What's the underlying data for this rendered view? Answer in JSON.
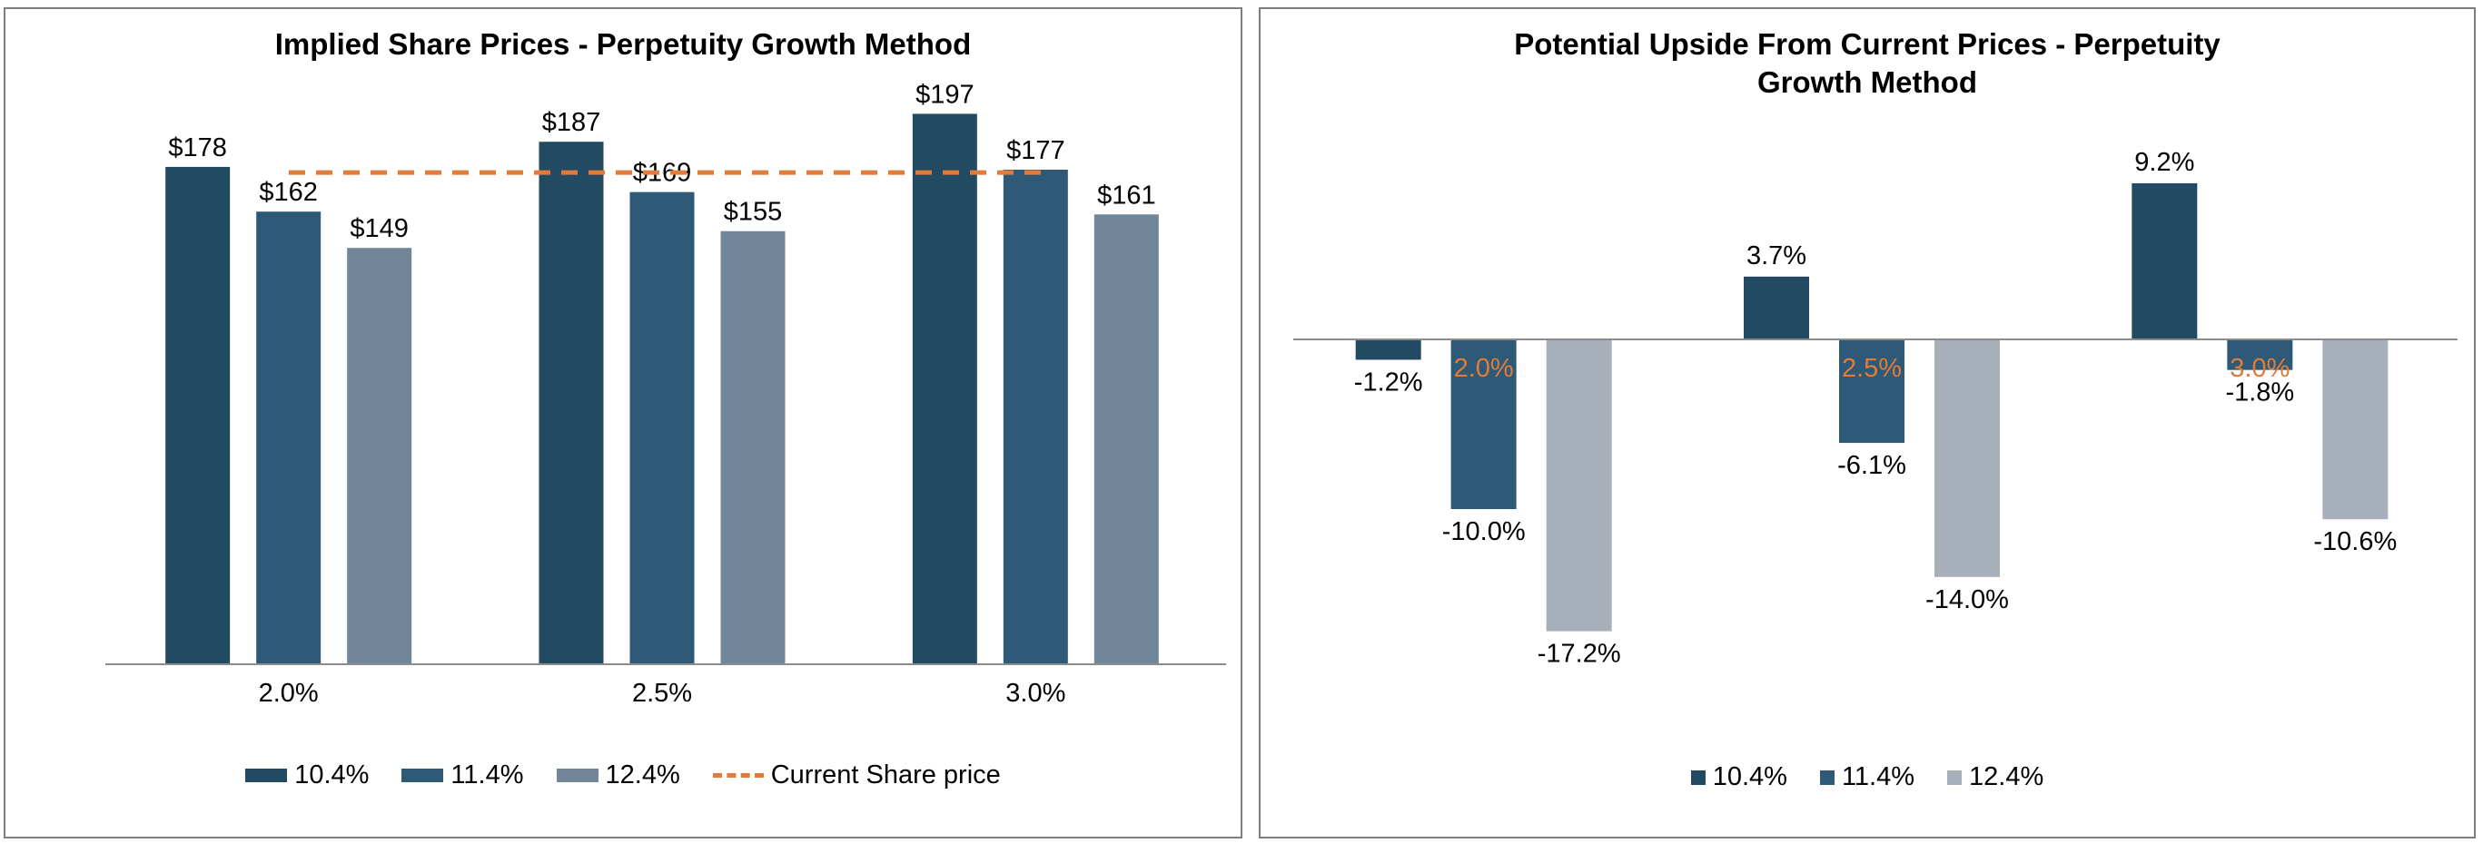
{
  "chart_data": [
    {
      "type": "bar",
      "title": "Implied Share Prices - Perpetuity Growth Method",
      "categories": [
        "2.0%",
        "2.5%",
        "3.0%"
      ],
      "series": [
        {
          "name": "10.4%",
          "values": [
            178,
            187,
            197
          ],
          "labels": [
            "$178",
            "$187",
            "$197"
          ],
          "color": "#234a63"
        },
        {
          "name": "11.4%",
          "values": [
            162,
            169,
            177
          ],
          "labels": [
            "$162",
            "$169",
            "$177"
          ],
          "color": "#2e5a78"
        },
        {
          "name": "12.4%",
          "values": [
            149,
            155,
            161
          ],
          "labels": [
            "$149",
            "$155",
            "$161"
          ],
          "color": "#72869a"
        }
      ],
      "reference_line": {
        "name": "Current Share price",
        "value": 176,
        "color": "#e07b39",
        "style": "dashed"
      },
      "ylim": [
        0,
        215
      ],
      "grid": false,
      "legend": "bottom"
    },
    {
      "type": "bar",
      "title": "Potential Upside From Current Prices - Perpetuity Growth Method",
      "categories": [
        "2.0%",
        "2.5%",
        "3.0%"
      ],
      "category_label_color": "#e07b39",
      "series": [
        {
          "name": "10.4%",
          "values": [
            -1.2,
            3.7,
            9.2
          ],
          "labels": [
            "-1.2%",
            "3.7%",
            "9.2%"
          ],
          "color": "#234a63"
        },
        {
          "name": "11.4%",
          "values": [
            -10.0,
            -6.1,
            -1.8
          ],
          "labels": [
            "-10.0%",
            "-6.1%",
            "-1.8%"
          ],
          "color": "#2e5a78"
        },
        {
          "name": "12.4%",
          "values": [
            -17.2,
            -14.0,
            -10.6
          ],
          "labels": [
            "-17.2%",
            "-14.0%",
            "-10.6%"
          ],
          "color": "#a7afba"
        }
      ],
      "ylim": [
        -20,
        12
      ],
      "grid": false,
      "legend": "bottom"
    }
  ]
}
